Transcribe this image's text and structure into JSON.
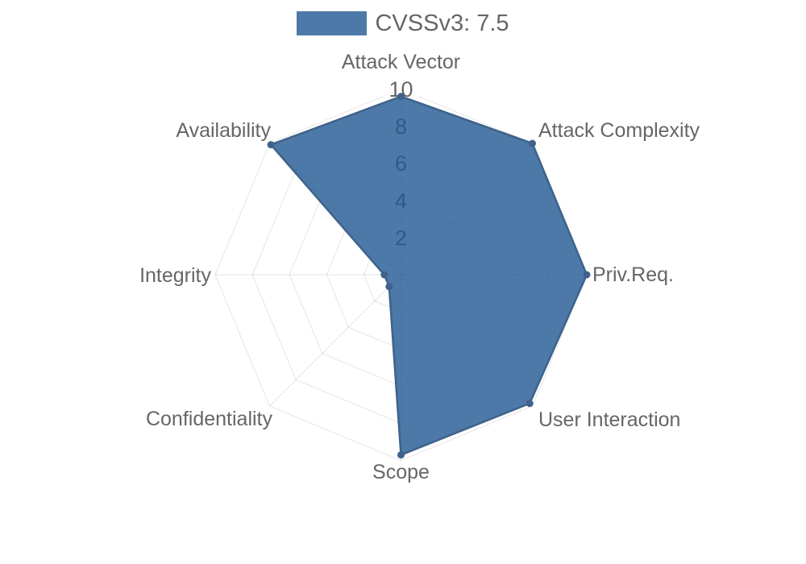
{
  "legend": {
    "label": "CVSSv3: 7.5"
  },
  "colors": {
    "series_fill_composited": "#4D79A8",
    "series_fill": "rgba(32,88,146,0.8)",
    "series_border": "#3E628A",
    "grid_line": "rgba(0,0,0,0.10)",
    "axis_label_text": "#666666",
    "tick_text": "#666666",
    "tick_backdrop": "rgba(255,255,255,0.75)",
    "legend_text": "#666666"
  },
  "chart_data": {
    "type": "radar",
    "title": "",
    "legend_entries": [
      "CVSSv3: 7.5"
    ],
    "legend_position": "top",
    "categories": [
      "Attack Vector",
      "Attack Complexity",
      "Priv.Req.",
      "User Interaction",
      "Scope",
      "Confidentiality",
      "Integrity",
      "Availability"
    ],
    "series": [
      {
        "name": "CVSSv3: 7.5",
        "values": [
          9.6,
          10,
          10,
          9.8,
          9.7,
          0.9,
          0.9,
          9.9
        ]
      }
    ],
    "rlim": [
      0,
      10
    ],
    "ticks": [
      2,
      4,
      6,
      8,
      10
    ],
    "grid": true,
    "grid_shape": "polygon",
    "start_axis": "top",
    "direction": "clockwise"
  }
}
